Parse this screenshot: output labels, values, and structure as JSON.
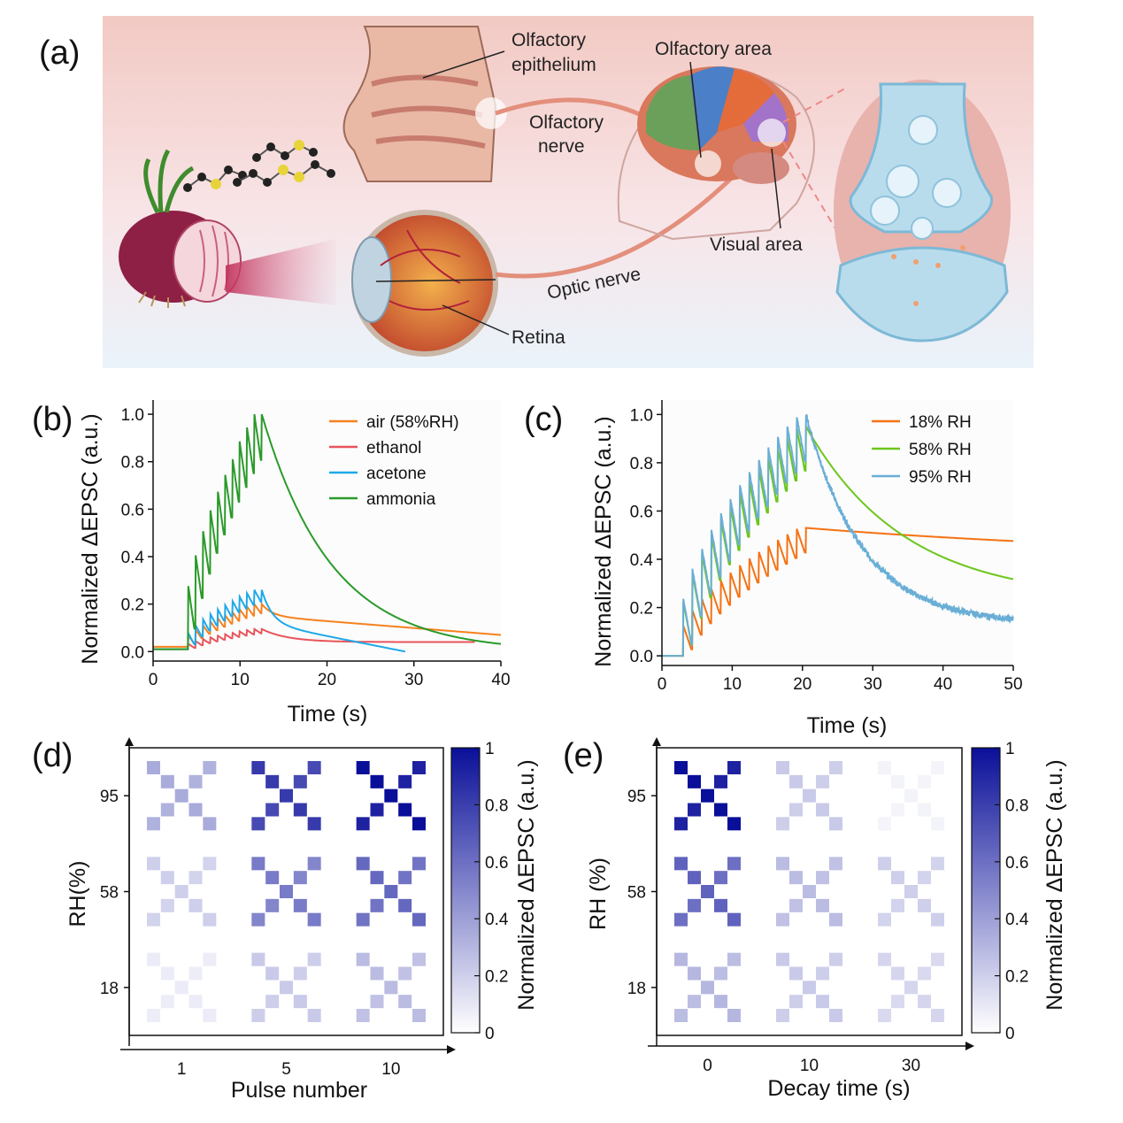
{
  "panel_a": {
    "label": "(a)",
    "annotations": {
      "olfactory_epithelium_1": "Olfactory",
      "olfactory_epithelium_2": "epithelium",
      "olfactory_area": "Olfactory area",
      "olfactory_nerve_1": "Olfactory",
      "olfactory_nerve_2": "nerve",
      "visual_area": "Visual area",
      "optic_nerve": "Optic nerve",
      "retina": "Retina"
    }
  },
  "chart_data": [
    {
      "id": "b",
      "panel_label": "(b)",
      "type": "line",
      "xlabel": "Time (s)",
      "ylabel": "Normalized ΔEPSC (a.u.)",
      "xlim": [
        0,
        40
      ],
      "ylim": [
        -0.04,
        1.06
      ],
      "xticks": [
        0,
        10,
        20,
        30,
        40
      ],
      "yticks": [
        0.0,
        0.2,
        0.4,
        0.6,
        0.8,
        1.0
      ],
      "ytick_labels": [
        "0.0",
        "0.2",
        "0.4",
        "0.6",
        "0.8",
        "1.0"
      ],
      "legend_position": "top-right",
      "series": [
        {
          "name": "air (58%RH)",
          "color": "#f5821f",
          "baseline": 0.02,
          "peak": 0.2,
          "pulses": 10,
          "start": 4,
          "end": 12.5,
          "decay_to": 0.07,
          "tau": 12,
          "t_end": 40,
          "slow": true
        },
        {
          "name": "ethanol",
          "color": "#e8545a",
          "baseline": 0.01,
          "peak": 0.095,
          "pulses": 10,
          "start": 4,
          "end": 12.5,
          "decay_to": 0.04,
          "tau": 3,
          "t_end": 37
        },
        {
          "name": "acetone",
          "color": "#1fa8e8",
          "baseline": 0.01,
          "peak": 0.26,
          "pulses": 10,
          "start": 4,
          "end": 12.5,
          "decay_to": 0.0,
          "tau": 9,
          "t_end": 29,
          "linear": true
        },
        {
          "name": "ammonia",
          "color": "#2a9a2a",
          "baseline": 0.01,
          "peak": 1.0,
          "pulses": 10,
          "start": 4,
          "end": 12.5,
          "decay_to": 0.0,
          "tau": 8,
          "t_end": 40
        }
      ]
    },
    {
      "id": "c",
      "panel_label": "(c)",
      "type": "line",
      "xlabel": "Time (s)",
      "ylabel": "Normalized ΔEPSC (a.u.)",
      "xlim": [
        0,
        50
      ],
      "ylim": [
        -0.04,
        1.06
      ],
      "xticks": [
        0,
        10,
        20,
        30,
        40,
        50
      ],
      "yticks": [
        0.0,
        0.2,
        0.4,
        0.6,
        0.8,
        1.0
      ],
      "ytick_labels": [
        "0.0",
        "0.2",
        "0.4",
        "0.6",
        "0.8",
        "1.0"
      ],
      "legend_position": "top-right",
      "series": [
        {
          "name": "18% RH",
          "color": "#f57214",
          "baseline": 0.0,
          "peak": 0.53,
          "pulses": 13,
          "start": 3,
          "end": 20.5,
          "decay_to": 0.39,
          "tau": 60,
          "t_end": 50
        },
        {
          "name": "58% RH",
          "color": "#6cc61c",
          "baseline": 0.0,
          "peak": 0.95,
          "pulses": 13,
          "start": 3,
          "end": 20.5,
          "decay_to": 0.23,
          "tau": 14,
          "t_end": 50
        },
        {
          "name": "95% RH",
          "color": "#6aaed6",
          "baseline": 0.0,
          "peak": 1.0,
          "pulses": 13,
          "start": 3,
          "end": 20.5,
          "decay_to": 0.13,
          "tau": 8,
          "t_end": 50,
          "noisy": true
        }
      ]
    },
    {
      "id": "d",
      "panel_label": "(d)",
      "type": "heatmap",
      "xlabel": "Pulse number",
      "ylabel": "RH(%)",
      "x_categories": [
        "1",
        "5",
        "10"
      ],
      "y_categories": [
        "18",
        "58",
        "95"
      ],
      "colorbar_label": "Normalized ΔEPSC (a.u.)",
      "colorbar_range": [
        0,
        1
      ],
      "colorbar_ticks": [
        "0",
        "0.2",
        "0.4",
        "0.6",
        "0.8",
        "1"
      ],
      "values": [
        [
          0.08,
          0.22,
          0.28
        ],
        [
          0.2,
          0.55,
          0.63
        ],
        [
          0.35,
          0.82,
          1.0
        ]
      ]
    },
    {
      "id": "e",
      "panel_label": "(e)",
      "type": "heatmap",
      "xlabel": "Decay time (s)",
      "ylabel": "RH (%)",
      "x_categories": [
        "0",
        "10",
        "30"
      ],
      "y_categories": [
        "18",
        "58",
        "95"
      ],
      "colorbar_label": "Normalized ΔEPSC (a.u.)",
      "colorbar_range": [
        0,
        1
      ],
      "colorbar_ticks": [
        "0",
        "0.2",
        "0.4",
        "0.6",
        "0.8",
        "1"
      ],
      "values": [
        [
          0.3,
          0.22,
          0.17
        ],
        [
          0.65,
          0.28,
          0.2
        ],
        [
          1.0,
          0.22,
          0.05
        ]
      ]
    }
  ]
}
